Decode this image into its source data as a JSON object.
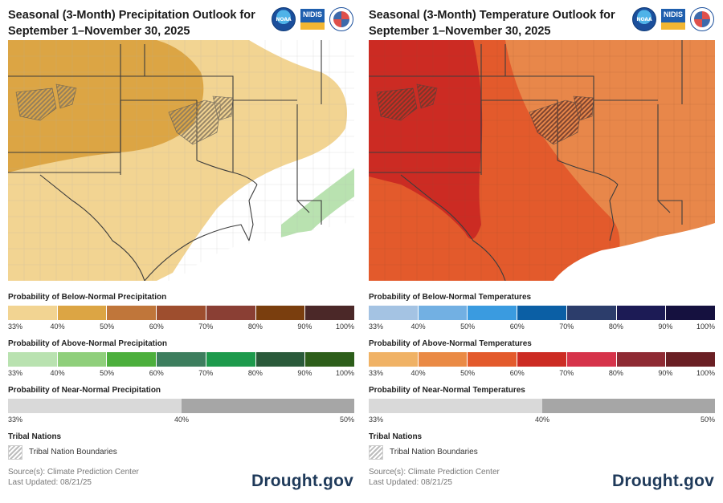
{
  "left": {
    "title_line1": "Seasonal (3-Month) Precipitation Outlook for",
    "title_line2": "September 1–November 30, 2025",
    "legend_below_title": "Probability of Below-Normal Precipitation",
    "legend_below_colors": [
      "#f2d492",
      "#dca544",
      "#c0763a",
      "#9e4e2e",
      "#8a3f34",
      "#7a3e0e",
      "#4b2828"
    ],
    "legend_above_title": "Probability of Above-Normal Precipitation",
    "legend_above_colors": [
      "#b9e2b0",
      "#8fcf7b",
      "#4caf3c",
      "#3d7e5e",
      "#1d9a4c",
      "#2a5a3a",
      "#2d5e1a"
    ],
    "tick_labels": [
      "33%",
      "40%",
      "50%",
      "60%",
      "70%",
      "80%",
      "90%",
      "100%"
    ],
    "legend_near_title": "Probability of Near-Normal Precipitation",
    "near_ticks": [
      "33%",
      "40%",
      "50%"
    ],
    "tribal_title": "Tribal Nations",
    "tribal_label": "Tribal Nation Boundaries",
    "source": "Source(s): Climate Prediction Center",
    "updated": "Last Updated: 08/21/25",
    "brand": "Drought.gov"
  },
  "right": {
    "title_line1": "Seasonal (3-Month) Temperature Outlook for",
    "title_line2": "September 1–November 30, 2025",
    "legend_below_title": "Probability of Below-Normal Temperatures",
    "legend_below_colors": [
      "#a4c3e3",
      "#72b0e3",
      "#3a9be0",
      "#0b5fa5",
      "#2c3d6b",
      "#1c1b55",
      "#15113f"
    ],
    "legend_above_title": "Probability of Above-Normal Temperatures",
    "legend_above_colors": [
      "#f0b265",
      "#ea8a45",
      "#e35a2c",
      "#cc2b23",
      "#d6334a",
      "#8e2a33",
      "#6a1f24"
    ],
    "tick_labels": [
      "33%",
      "40%",
      "50%",
      "60%",
      "70%",
      "80%",
      "90%",
      "100%"
    ],
    "legend_near_title": "Probability of Near-Normal Temperatures",
    "near_ticks": [
      "33%",
      "40%",
      "50%"
    ],
    "tribal_title": "Tribal Nations",
    "tribal_label": "Tribal Nation Boundaries",
    "source": "Source(s): Climate Prediction Center",
    "updated": "Last Updated: 08/21/25",
    "brand": "Drought.gov"
  },
  "logos": {
    "noaa": "NOAA",
    "nidis": "NIDIS",
    "nws_icon": "nws-icon"
  }
}
